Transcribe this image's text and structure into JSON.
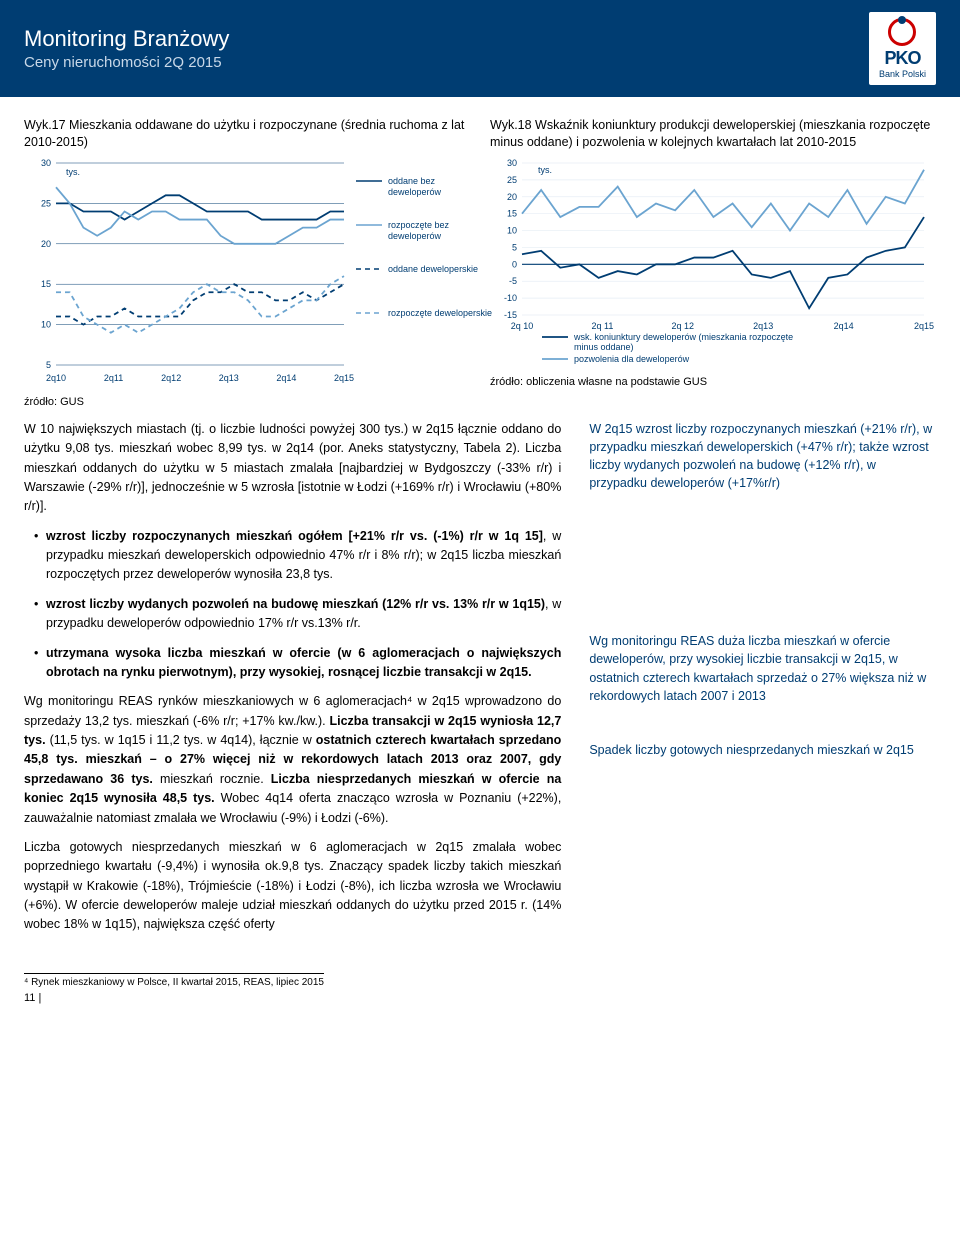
{
  "header": {
    "title": "Monitoring Branżowy",
    "subtitle": "Ceny nieruchomości 2Q 2015"
  },
  "logo": {
    "main": "PKO",
    "sub": "Bank Polski"
  },
  "chart17": {
    "title": "Wyk.17 Mieszkania oddawane do użytku i rozpoczynane (średnia ruchoma z lat 2010-2015)",
    "ylabel": "tys.",
    "yticks": [
      5,
      10,
      15,
      20,
      25,
      30
    ],
    "xticks": [
      "2q10",
      "2q11",
      "2q12",
      "2q13",
      "2q14",
      "2q15"
    ],
    "legend": [
      "oddane bez deweloperów",
      "rozpoczęte bez deweloperów",
      "oddane deweloperskie",
      "rozpoczęte deweloperskie"
    ],
    "colors": [
      "#003d72",
      "#6ba4d0",
      "#003d72",
      "#6ba4d0"
    ],
    "dash": [
      false,
      false,
      true,
      true
    ],
    "series": [
      [
        25,
        25,
        24,
        24,
        24,
        23,
        24,
        25,
        26,
        26,
        25,
        24,
        24,
        24,
        24,
        23,
        23,
        23,
        23,
        23,
        24,
        24
      ],
      [
        27,
        25,
        22,
        21,
        22,
        24,
        23,
        24,
        24,
        23,
        23,
        23,
        21,
        20,
        20,
        20,
        20,
        21,
        22,
        22,
        23,
        23
      ],
      [
        11,
        11,
        10,
        11,
        11,
        12,
        11,
        11,
        11,
        11,
        13,
        14,
        14,
        15,
        14,
        14,
        13,
        13,
        14,
        13,
        14,
        15
      ],
      [
        14,
        14,
        11,
        10,
        9,
        10,
        9,
        10,
        11,
        12,
        14,
        15,
        14,
        14,
        13,
        11,
        11,
        12,
        13,
        13,
        15,
        16
      ]
    ],
    "source": "źródło: GUS"
  },
  "chart18": {
    "title": "Wyk.18 Wskaźnik koniunktury produkcji deweloperskiej (mieszkania rozpoczęte minus oddane) i pozwolenia w kolejnych kwartałach lat 2010-2015",
    "ylabel": "tys.",
    "yticks": [
      -15,
      -10,
      -5,
      0,
      5,
      10,
      15,
      20,
      25,
      30
    ],
    "xticks": [
      "2q 10",
      "2q 11",
      "2q 12",
      "2q13",
      "2q14",
      "2q15"
    ],
    "legend": [
      "wsk. koniunktury deweloperów (mieszkania rozpoczęte minus oddane)",
      "pozwolenia dla deweloperów"
    ],
    "colors": [
      "#003d72",
      "#6ba4d0"
    ],
    "series": [
      [
        3,
        4,
        -1,
        0,
        -4,
        -2,
        -3,
        0,
        0,
        2,
        2,
        4,
        -3,
        -4,
        -2,
        -13,
        -4,
        -3,
        2,
        4,
        5,
        14
      ],
      [
        15,
        22,
        14,
        17,
        17,
        23,
        14,
        18,
        16,
        22,
        14,
        18,
        11,
        18,
        10,
        18,
        14,
        22,
        12,
        20,
        18,
        28
      ]
    ],
    "source": "źródło: obliczenia własne na podstawie GUS"
  },
  "body": {
    "p1": "W 10 największych miastach (tj. o liczbie ludności powyżej 300 tys.) w 2q15 łącznie oddano do użytku 9,08 tys. mieszkań wobec 8,99 tys. w 2q14 (por. Aneks statystyczny, Tabela 2). Liczba mieszkań oddanych do użytku w 5 miastach zmalała [najbardziej w Bydgoszczy (-33% r/r) i Warszawie (-29% r/r)], jednocześnie w 5 wzrosła [istotnie w Łodzi (+169% r/r) i Wrocławiu (+80% r/r)].",
    "p2a": "wzrost liczby rozpoczynanych mieszkań ogółem [+21% r/r vs. (-1%) r/r w 1q 15]",
    "p2b": ", w przypadku mieszkań deweloperskich odpowiednio 47% r/r i 8% r/r); w 2q15 liczba mieszkań rozpoczętych przez deweloperów wynosiła 23,8 tys.",
    "p3a": "wzrost liczby wydanych pozwoleń na budowę mieszkań (12% r/r vs. 13% r/r w 1q15)",
    "p3b": ", w przypadku deweloperów odpowiednio 17% r/r vs.13% r/r.",
    "p4a": "utrzymana wysoka liczba mieszkań w ofercie (w 6 aglomeracjach o największych obrotach na rynku pierwotnym), przy wysokiej, rosnącej liczbie transakcji w 2q15.",
    "p5": "Wg monitoringu REAS rynków mieszkaniowych w 6 aglomeracjach⁴ w 2q15 wprowadzono do sprzedaży 13,2 tys. mieszkań (-6% r/r; +17% kw./kw.). Liczba transakcji w 2q15 wyniosła 12,7 tys. (11,5 tys. w 1q15 i 11,2 tys. w 4q14), łącznie w ostatnich czterech kwartałach sprzedano 45,8 tys. mieszkań – o 27% więcej niż w rekordowych latach 2013 oraz 2007, gdy sprzedawano 36 tys. mieszkań rocznie. Liczba niesprzedanych mieszkań w ofercie na koniec 2q15 wynosiła 48,5 tys. Wobec 4q14 oferta znacząco wzrosła w Poznaniu (+22%), zauważalnie natomiast zmalała we Wrocławiu (-9%) i Łodzi (-6%).",
    "p6": "Liczba gotowych niesprzedanych mieszkań w 6 aglomeracjach w 2q15 zmalała wobec poprzedniego kwartału (-9,4%) i wynosiła ok.9,8 tys. Znaczący spadek liczby takich mieszkań wystąpił w Krakowie (-18%), Trójmieście (-18%) i Łodzi (-8%), ich liczba wzrosła we Wrocławiu (+6%). W ofercie deweloperów maleje udział mieszkań oddanych do użytku przed 2015 r. (14% wobec 18% w 1q15), największa część oferty"
  },
  "side": {
    "s1": "W 2q15 wzrost liczby rozpoczynanych mieszkań (+21% r/r), w przypadku mieszkań deweloperskich (+47% r/r); także wzrost liczby wydanych pozwoleń na budowę (+12% r/r), w przypadku deweloperów (+17%r/r)",
    "s2": "Wg monitoringu REAS duża liczba mieszkań w ofercie deweloperów, przy wysokiej liczbie transakcji w 2q15, w ostatnich czterech kwartałach sprzedaż o 27% większa niż w rekordowych latach 2007 i 2013",
    "s3": "Spadek liczby gotowych niesprzedanych mieszkań w 2q15"
  },
  "footnote": "⁴ Rynek mieszkaniowy w Polsce, II kwartał 2015, REAS, lipiec 2015",
  "pagenum": "11 |"
}
